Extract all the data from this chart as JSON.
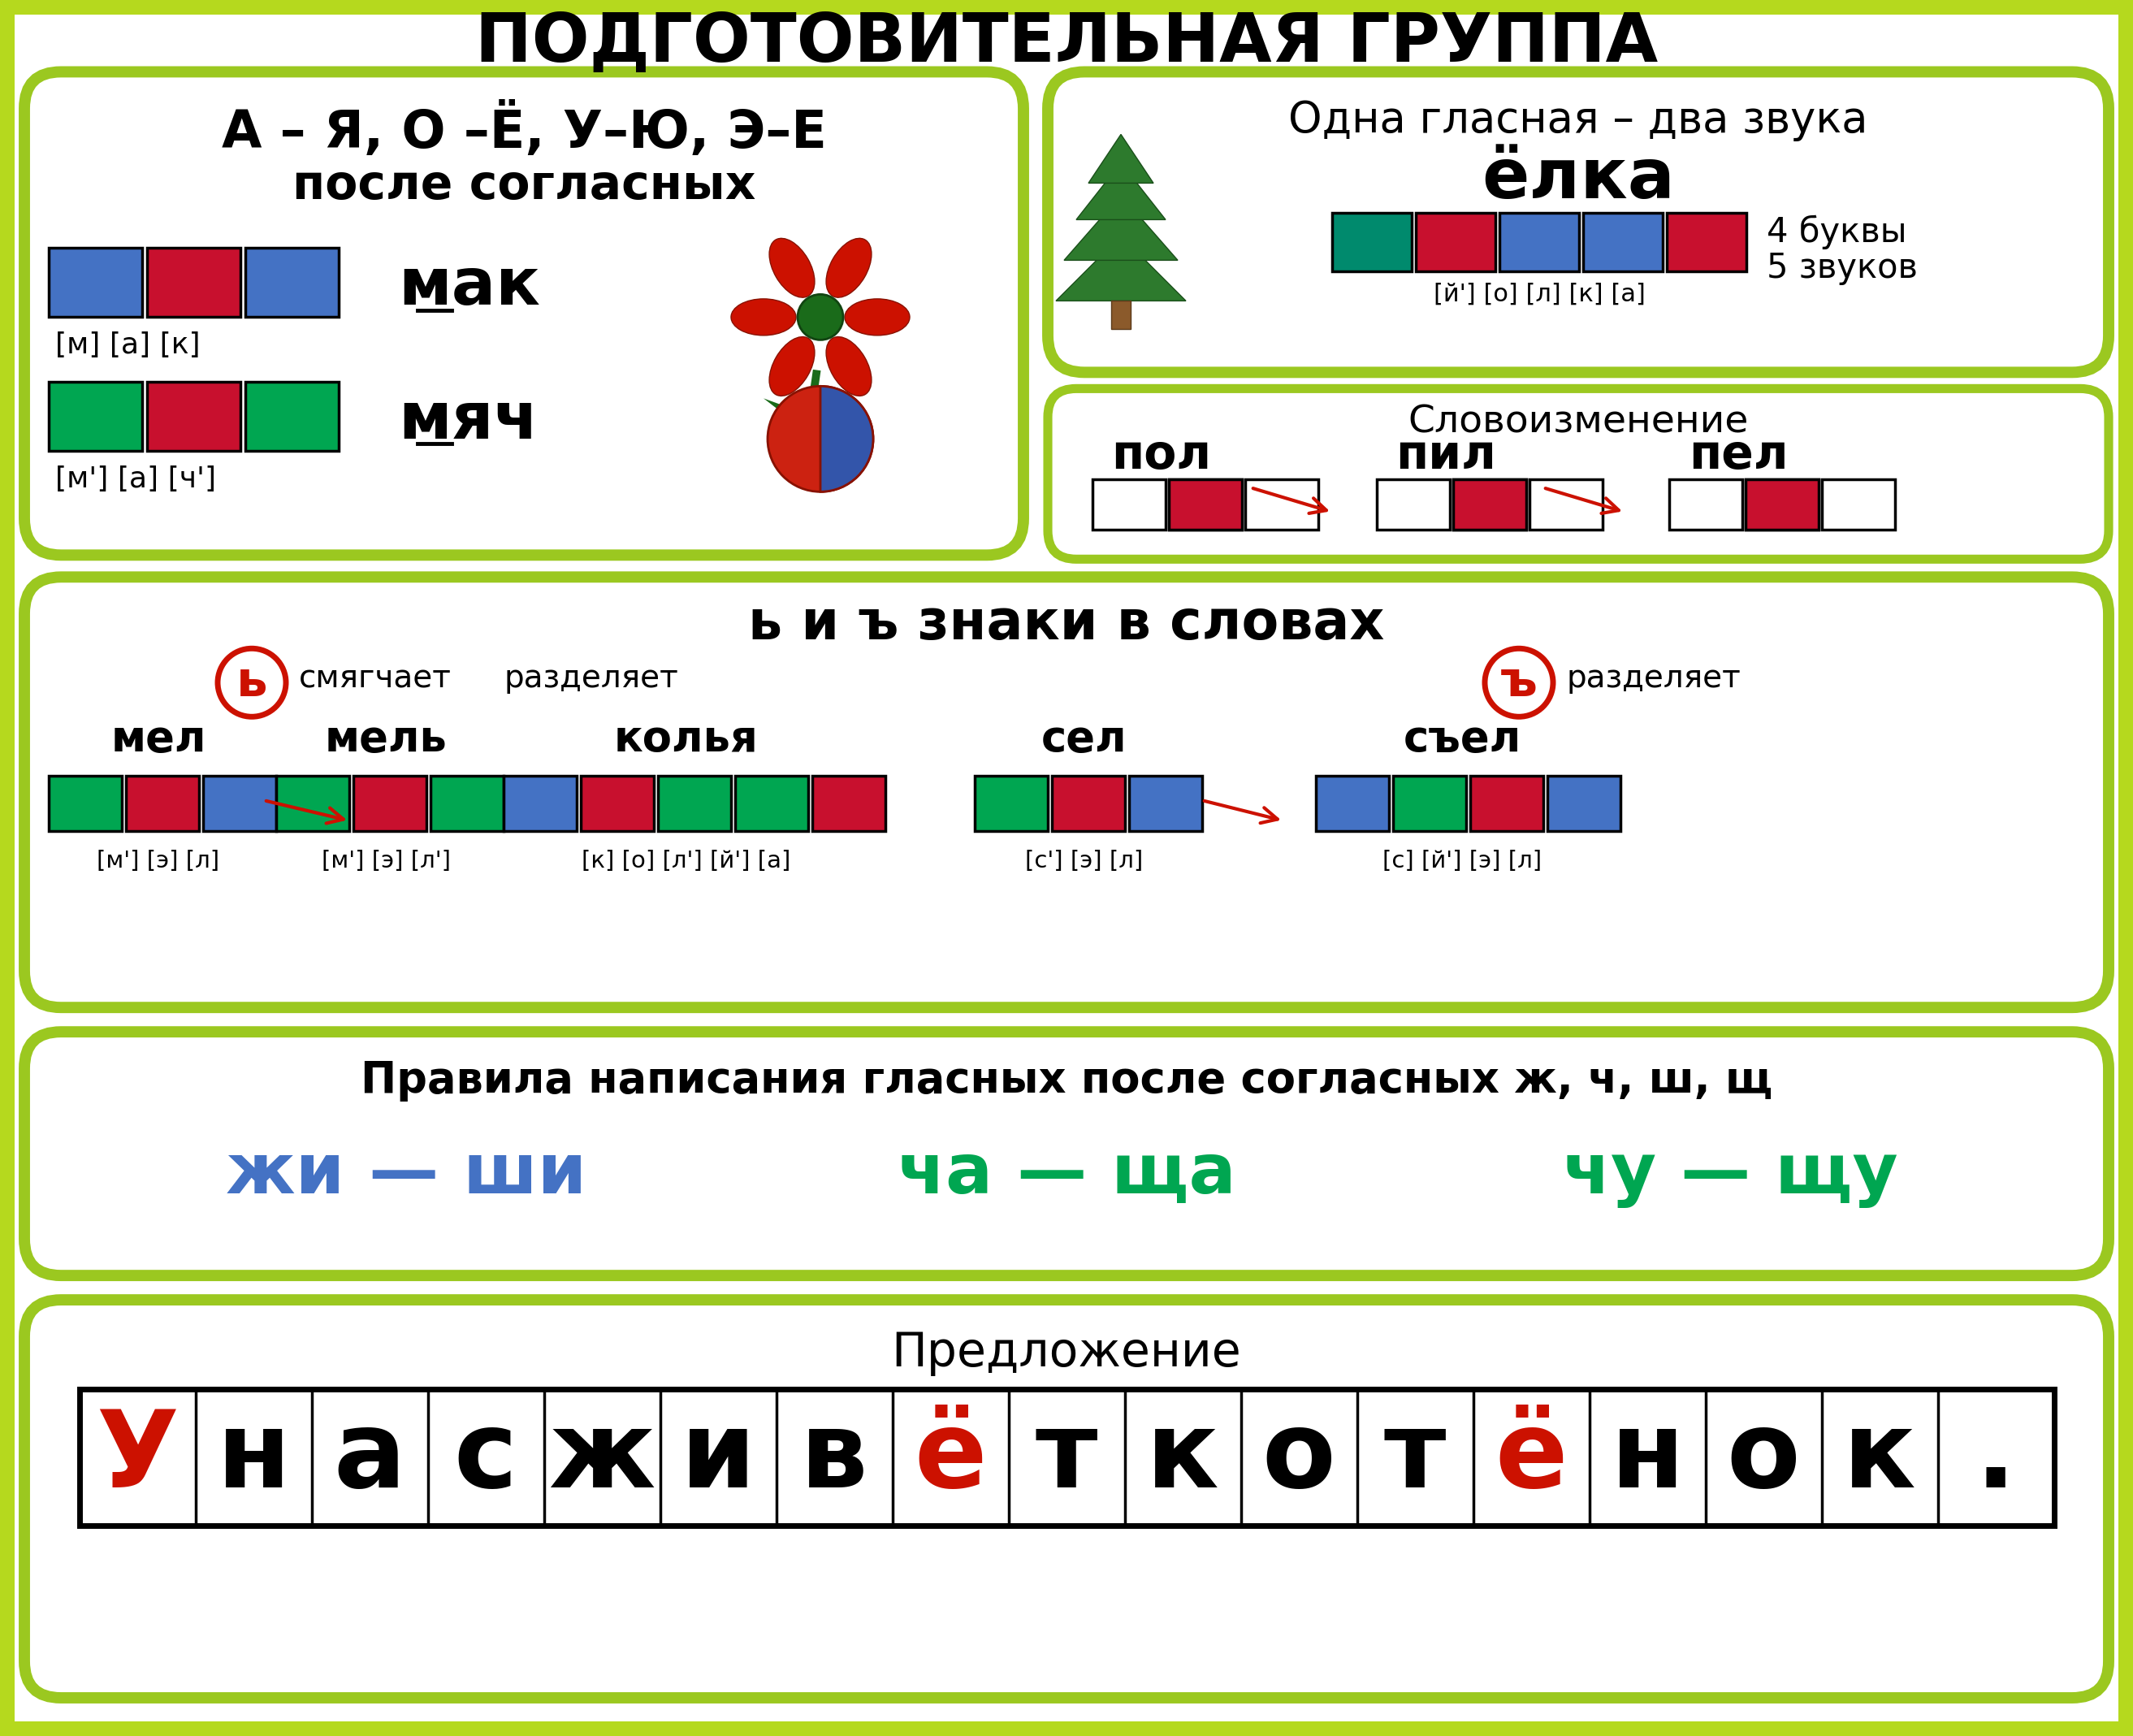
{
  "title": "ПОДГОТОВИТЕЛЬНАЯ ГРУППА",
  "bg_color": "#ffffff",
  "lime_green": "#9bc820",
  "blue_hard": "#4472c4",
  "green_soft": "#00a651",
  "red_vowel": "#c8102e",
  "teal_yot": "#008a6d",
  "sentence_letters": [
    "У",
    "н",
    "а",
    "с",
    "ж",
    "и",
    "в",
    "ё",
    "т",
    "к",
    "о",
    "т",
    "ё",
    "н",
    "о",
    "к",
    "."
  ],
  "sentence_red": [
    true,
    false,
    false,
    false,
    false,
    false,
    false,
    true,
    false,
    false,
    false,
    false,
    true,
    false,
    false,
    false,
    false
  ]
}
